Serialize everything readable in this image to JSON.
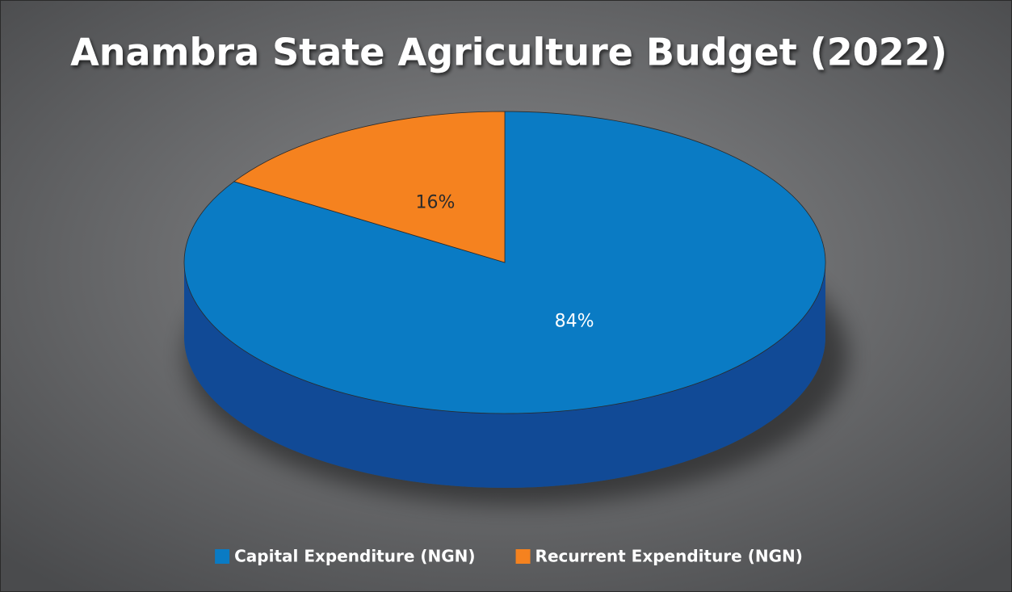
{
  "chart_data": {
    "type": "pie",
    "title": "Anambra State Agriculture Budget (2022)",
    "categories": [
      "Capital Expenditure (NGN)",
      "Recurrent Expenditure (NGN)"
    ],
    "values": [
      84,
      16
    ],
    "value_labels": [
      "84%",
      "16%"
    ],
    "colors": [
      "#0a7bc4",
      "#f5821f"
    ],
    "legend": "bottom"
  }
}
